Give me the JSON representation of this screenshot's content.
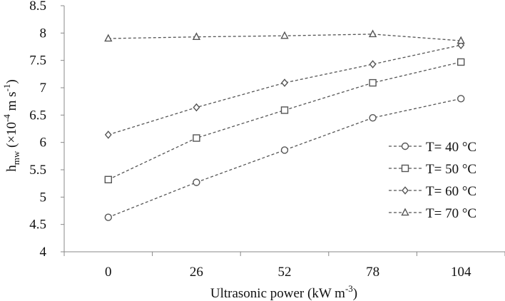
{
  "chart_data": {
    "type": "line",
    "title": "",
    "xlabel": "Ultrasonic  power (kW m",
    "xlabel_sup": "-3",
    "xlabel_end": ")",
    "ylabel_main": "h",
    "ylabel_sub": "mw",
    "ylabel_mid": " (×10",
    "ylabel_sup1": "-4",
    "ylabel_units": " m s",
    "ylabel_sup2": "-1",
    "ylabel_end": ")",
    "categories": [
      "0",
      "26",
      "52",
      "78",
      "104"
    ],
    "ylim": [
      4,
      8.5
    ],
    "yticks": [
      "4",
      "4.5",
      "5",
      "5.5",
      "6",
      "6.5",
      "7",
      "7.5",
      "8",
      "8.5"
    ],
    "grid": false,
    "legend_position": "right",
    "series": [
      {
        "name": "T= 40 °C",
        "marker": "circle",
        "values": [
          4.63,
          5.27,
          5.86,
          6.45,
          6.8
        ]
      },
      {
        "name": "T= 50 °C",
        "marker": "square",
        "values": [
          5.32,
          6.08,
          6.59,
          7.09,
          7.47
        ]
      },
      {
        "name": "T= 60 °C",
        "marker": "diamond",
        "values": [
          6.14,
          6.64,
          7.09,
          7.43,
          7.78
        ]
      },
      {
        "name": "T= 70 °C",
        "marker": "triangle",
        "values": [
          7.9,
          7.93,
          7.95,
          7.98,
          7.86
        ]
      }
    ],
    "colors": {
      "line": "#555555",
      "marker": "#555555",
      "axis": "#888888",
      "text": "#111111"
    }
  }
}
